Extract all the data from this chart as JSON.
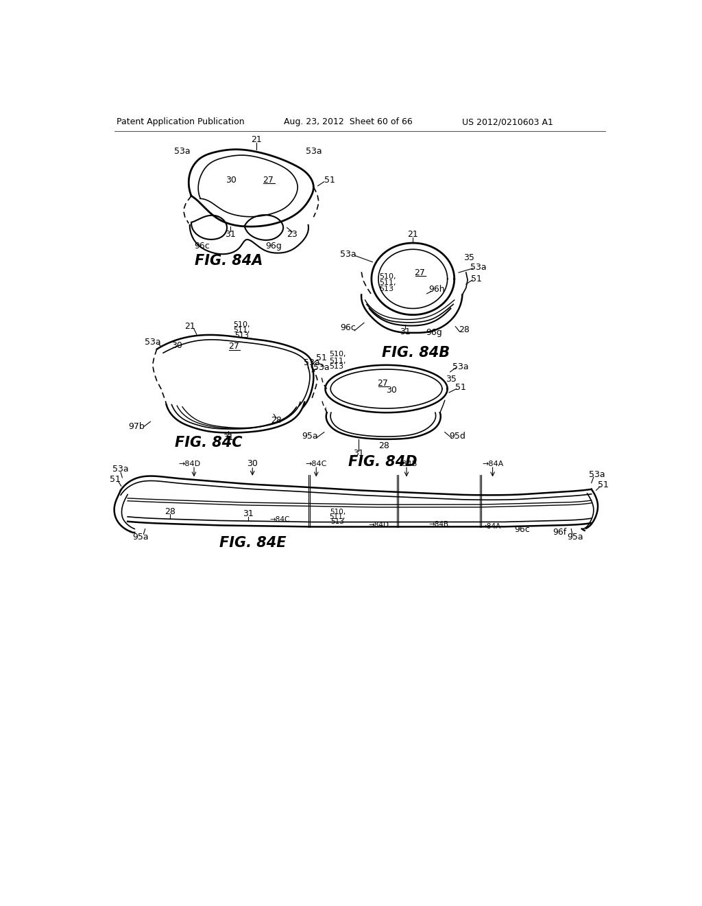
{
  "background_color": "#ffffff",
  "header_left": "Patent Application Publication",
  "header_mid": "Aug. 23, 2012  Sheet 60 of 66",
  "header_right": "US 2012/0210603 A1"
}
